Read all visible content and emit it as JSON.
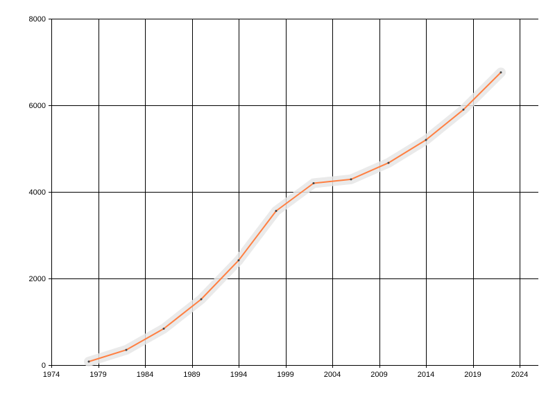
{
  "chart_data": {
    "type": "line",
    "title": "",
    "xlabel": "",
    "ylabel": "",
    "xlim": [
      1974,
      2026
    ],
    "ylim": [
      0,
      8000
    ],
    "xticks": [
      1974,
      1979,
      1984,
      1989,
      1994,
      1999,
      2004,
      2009,
      2014,
      2019,
      2024
    ],
    "yticks": [
      0,
      2000,
      4000,
      6000,
      8000
    ],
    "grid": true,
    "legend": "none",
    "series": [
      {
        "color": "#ff7f41",
        "band_color": "#e6e6e6",
        "x": [
          1978,
          1982,
          1986,
          1990,
          1994,
          1998,
          2002,
          2006,
          2010,
          2014,
          2018,
          2022
        ],
        "y": [
          80,
          350,
          840,
          1520,
          2420,
          3560,
          4200,
          4290,
          4670,
          5200,
          5900,
          6760
        ]
      }
    ]
  }
}
